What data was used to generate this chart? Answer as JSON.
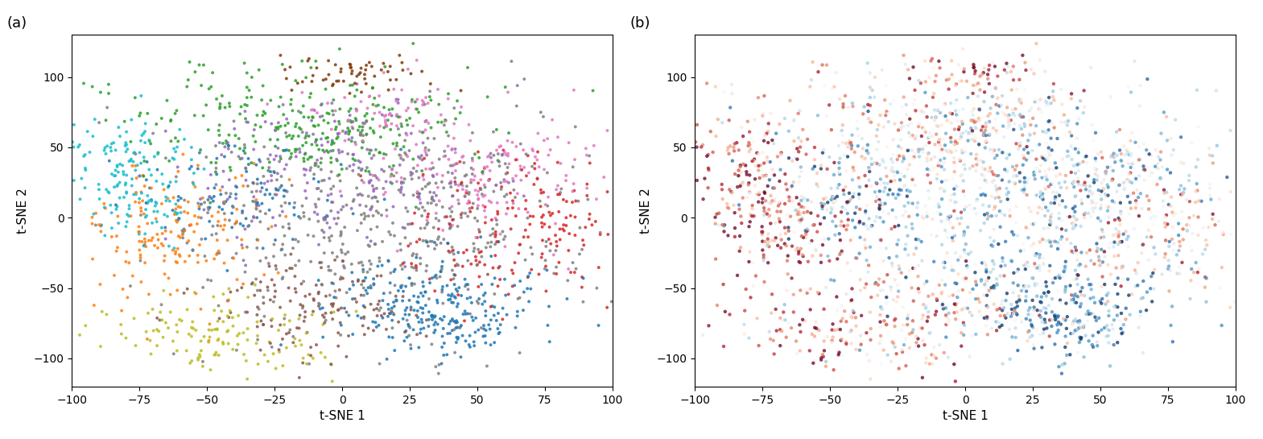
{
  "seed": 42,
  "n_points": 2000,
  "xlim": [
    -100,
    100
  ],
  "ylim": [
    -120,
    130
  ],
  "xlabel": "t-SNE 1",
  "ylabel": "t-SNE 2",
  "label_a": "(a)",
  "label_b": "(b)",
  "xticks": [
    -100,
    -75,
    -50,
    -25,
    0,
    25,
    50,
    75,
    100
  ],
  "yticks": [
    -100,
    -50,
    0,
    50,
    100
  ],
  "cluster_colors": [
    "#1f77b4",
    "#2ca02c",
    "#ff7f0e",
    "#9467bd",
    "#8c564b",
    "#e377c2",
    "#17becf",
    "#808080",
    "#d62728",
    "#bcbd22"
  ],
  "marker_size": 8,
  "alpha": 0.85,
  "figsize": [
    15.69,
    5.45
  ],
  "dpi": 100
}
